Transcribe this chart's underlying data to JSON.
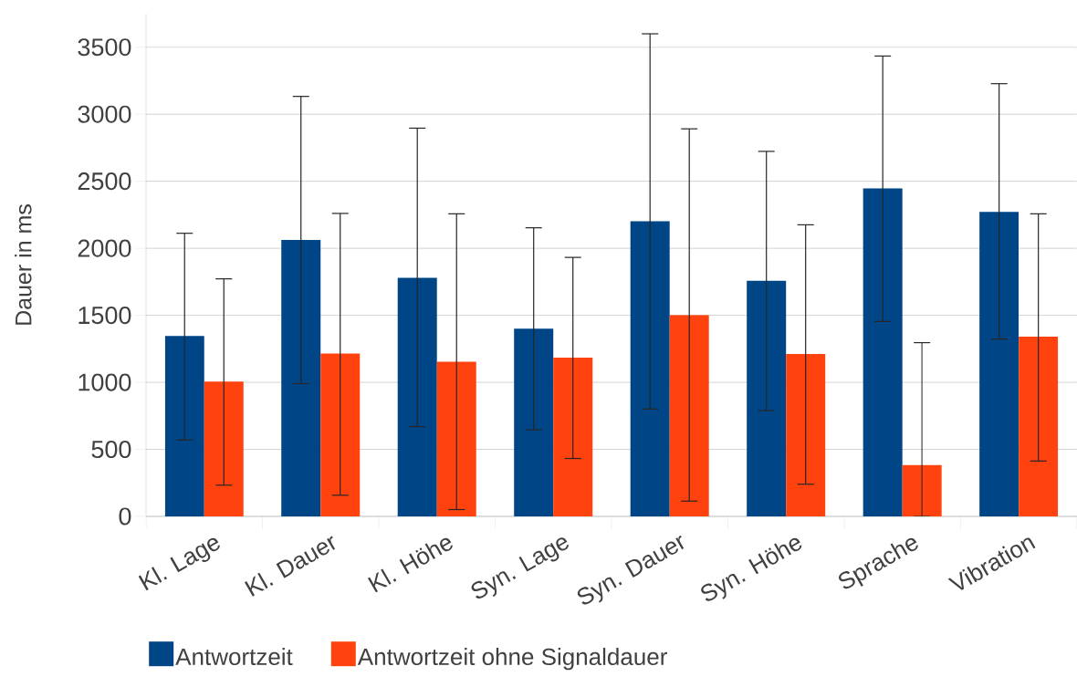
{
  "chart_data": {
    "type": "bar",
    "ylabel": "Dauer in ms",
    "categories": [
      "Kl. Lage",
      "Kl. Dauer",
      "Kl. Höhe",
      "Syn. Lage",
      "Syn. Dauer",
      "Syn. Höhe",
      "Sprache",
      "Vibration"
    ],
    "series": [
      {
        "name": "Antwortzeit",
        "color": "#004586",
        "values": [
          1345,
          2063,
          1779,
          1400,
          2201,
          1757,
          2447,
          2272
        ],
        "errors": [
          [
            570,
            2112
          ],
          [
            990,
            3133
          ],
          [
            670,
            2896
          ],
          [
            646,
            2153
          ],
          [
            801,
            3600
          ],
          [
            789,
            2723
          ],
          [
            1454,
            3434
          ],
          [
            1323,
            3228
          ]
        ]
      },
      {
        "name": "Antwortzeit ohne Signaldauer",
        "color": "#ff420e",
        "values": [
          1005,
          1214,
          1153,
          1184,
          1502,
          1211,
          383,
          1340
        ],
        "errors": [
          [
            233,
            1772
          ],
          [
            158,
            2260
          ],
          [
            51,
            2257
          ],
          [
            432,
            1932
          ],
          [
            114,
            2891
          ],
          [
            240,
            2175
          ],
          [
            0,
            1296
          ],
          [
            413,
            2257
          ]
        ]
      }
    ],
    "ylim": [
      0,
      3750
    ],
    "yticks": [
      0,
      500,
      1000,
      1500,
      2000,
      2500,
      3000,
      3500
    ],
    "grid": "y",
    "legend": "bottom"
  }
}
